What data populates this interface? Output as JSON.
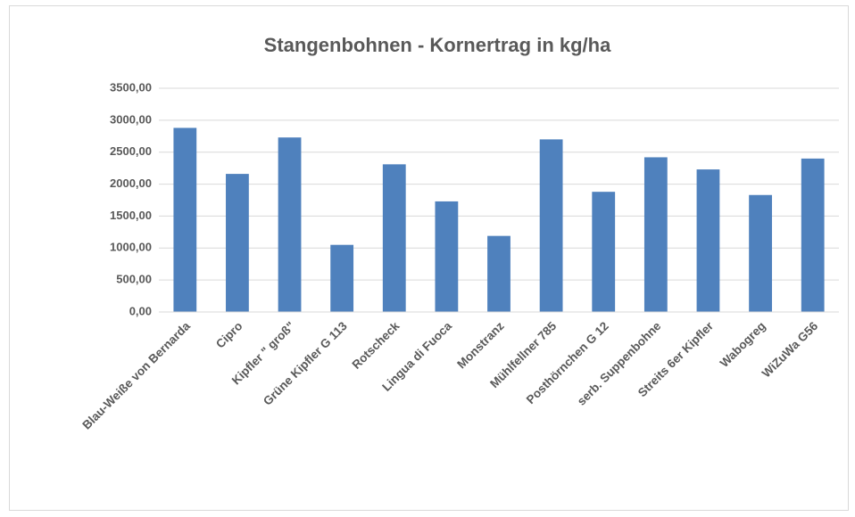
{
  "chart_data": {
    "type": "bar",
    "title": "Stangenbohnen - Kornertrag in kg/ha",
    "categories": [
      "Blau-Weiße von Bernarda",
      "Cipro",
      "Kipfler \" groß\"",
      "Grüne Kipfler G 113",
      "Rotscheck",
      "Lingua di Fuoca",
      "Monstranz",
      "Mühlfellner 785",
      "Posthörnchen G 12",
      "serb. Suppenbohne",
      "Streits 6er Kipfler",
      "Wabogreg",
      "WiZuWa G56"
    ],
    "values": [
      2880,
      2160,
      2730,
      1050,
      2310,
      1730,
      1190,
      2700,
      1880,
      2420,
      2230,
      1830,
      2400
    ],
    "color": "#4f81bd",
    "ylim": [
      0,
      3500
    ],
    "yticks": [
      {
        "value": 0,
        "label": "0,00"
      },
      {
        "value": 500,
        "label": "500,00"
      },
      {
        "value": 1000,
        "label": "1000,00"
      },
      {
        "value": 1500,
        "label": "1500,00"
      },
      {
        "value": 2000,
        "label": "2000,00"
      },
      {
        "value": 2500,
        "label": "2500,00"
      },
      {
        "value": 3000,
        "label": "3000,00"
      },
      {
        "value": 3500,
        "label": "3500,00"
      }
    ],
    "grid": true
  }
}
